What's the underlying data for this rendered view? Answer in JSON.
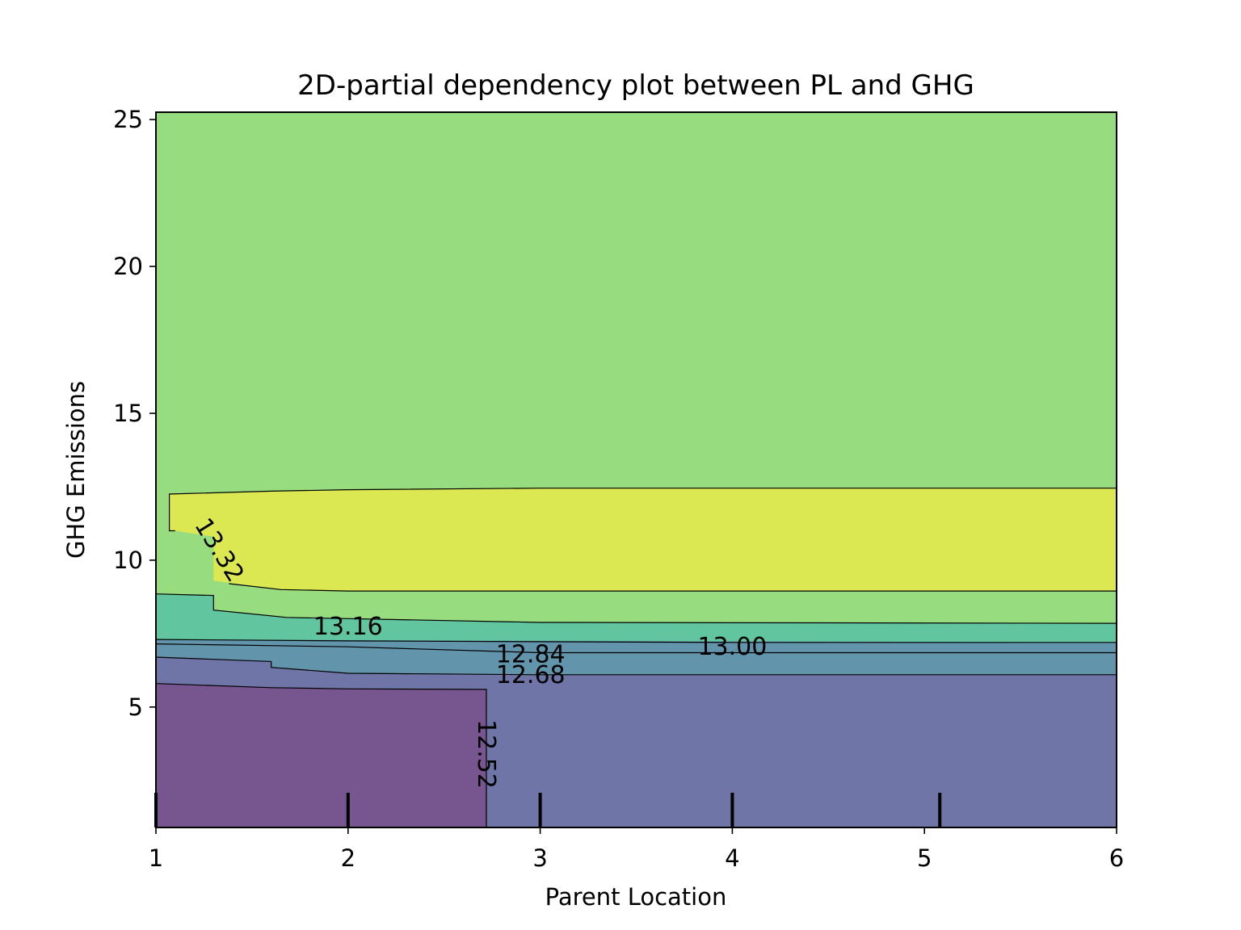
{
  "chart_data": {
    "type": "contour",
    "title": "2D-partial dependency plot between PL and GHG",
    "xlabel": "Parent Location",
    "ylabel": "GHG Emissions",
    "xlim": [
      1,
      6
    ],
    "ylim": [
      0.9,
      25.25
    ],
    "x_ticks": [
      1,
      2,
      3,
      4,
      5,
      6
    ],
    "y_ticks": [
      5,
      10,
      15,
      20,
      25
    ],
    "grid": false,
    "levels": [
      {
        "label": "12.52",
        "value": 12.52,
        "color": "#77558f"
      },
      {
        "label": "12.68",
        "value": 12.68,
        "color": "#6f76a7"
      },
      {
        "label": "12.84",
        "value": 12.84,
        "color": "#6294ab"
      },
      {
        "label": "13.00",
        "value": 13.0,
        "color": "#61c6a0"
      },
      {
        "label": "13.16",
        "value": 13.16,
        "color": "#97dc7f"
      },
      {
        "label": "13.32",
        "value": 13.32,
        "color": "#dbe851"
      }
    ],
    "regions": [
      {
        "color": "#97dc7f",
        "points": [
          [
            1,
            0.9
          ],
          [
            6,
            0.9
          ],
          [
            6,
            25.25
          ],
          [
            1,
            25.25
          ]
        ]
      },
      {
        "color": "#61c6a0",
        "points": [
          [
            1,
            0.9
          ],
          [
            6,
            0.9
          ],
          [
            6,
            7.85
          ],
          [
            3.0,
            7.88
          ],
          [
            1.68,
            8.05
          ],
          [
            1.3,
            8.3
          ],
          [
            1.3,
            8.8
          ],
          [
            1,
            8.85
          ]
        ]
      },
      {
        "color": "#6294ab",
        "points": [
          [
            1,
            0.9
          ],
          [
            6,
            0.9
          ],
          [
            6,
            7.2
          ],
          [
            1,
            7.3
          ]
        ]
      },
      {
        "color": "#6f76a7",
        "points": [
          [
            1,
            0.9
          ],
          [
            6,
            0.9
          ],
          [
            6,
            6.1
          ],
          [
            3.0,
            6.1
          ],
          [
            2.0,
            6.15
          ],
          [
            1.6,
            6.35
          ],
          [
            1.6,
            6.55
          ],
          [
            1,
            6.7
          ]
        ]
      },
      {
        "color": "#77558f",
        "points": [
          [
            1,
            0.9
          ],
          [
            2.72,
            0.9
          ],
          [
            2.72,
            5.6
          ],
          [
            2.0,
            5.62
          ],
          [
            1.6,
            5.66
          ],
          [
            1,
            5.8
          ]
        ]
      },
      {
        "color": "#dbe851",
        "points": [
          [
            1.07,
            12.25
          ],
          [
            1.6,
            12.35
          ],
          [
            2.0,
            12.4
          ],
          [
            3.0,
            12.45
          ],
          [
            6,
            12.45
          ],
          [
            6,
            8.95
          ],
          [
            3.0,
            8.95
          ],
          [
            2.0,
            8.95
          ],
          [
            1.65,
            9.0
          ],
          [
            1.3,
            9.3
          ],
          [
            1.3,
            10.8
          ],
          [
            1.1,
            11.0
          ],
          [
            1.07,
            11.0
          ]
        ]
      }
    ],
    "contour_lines": [
      {
        "level": "13.32",
        "points": [
          [
            1.1,
            11.0
          ],
          [
            1.07,
            11.0
          ],
          [
            1.07,
            12.25
          ],
          [
            1.6,
            12.35
          ],
          [
            2.0,
            12.4
          ],
          [
            3.0,
            12.45
          ],
          [
            6,
            12.45
          ]
        ]
      },
      {
        "level": "13.32",
        "points": [
          [
            1.38,
            9.2
          ],
          [
            1.65,
            9.0
          ],
          [
            2.0,
            8.95
          ],
          [
            3.0,
            8.95
          ],
          [
            6,
            8.95
          ]
        ]
      },
      {
        "level": "13.16",
        "points": [
          [
            1,
            8.85
          ],
          [
            1.3,
            8.8
          ],
          [
            1.3,
            8.3
          ],
          [
            1.68,
            8.05
          ],
          [
            3.0,
            7.88
          ],
          [
            6,
            7.85
          ]
        ]
      },
      {
        "level": "13.00",
        "points": [
          [
            1,
            7.3
          ],
          [
            2.0,
            7.25
          ],
          [
            4.0,
            7.2
          ],
          [
            6,
            7.2
          ]
        ]
      },
      {
        "level": "12.84",
        "points": [
          [
            1,
            7.15
          ],
          [
            2.0,
            7.05
          ],
          [
            3.0,
            6.85
          ],
          [
            6,
            6.85
          ]
        ]
      },
      {
        "level": "12.68",
        "points": [
          [
            1,
            6.7
          ],
          [
            1.6,
            6.55
          ],
          [
            1.6,
            6.35
          ],
          [
            2.0,
            6.15
          ],
          [
            3.0,
            6.1
          ],
          [
            6,
            6.1
          ]
        ]
      },
      {
        "level": "12.52",
        "points": [
          [
            1,
            5.8
          ],
          [
            1.6,
            5.66
          ],
          [
            2.0,
            5.62
          ],
          [
            2.72,
            5.6
          ],
          [
            2.72,
            0.9
          ]
        ]
      }
    ],
    "contour_labels": [
      {
        "text": "13.32",
        "x": 1.33,
        "y": 10.35,
        "angle": 58
      },
      {
        "text": "13.16",
        "x": 2.0,
        "y": 7.75,
        "angle": 0
      },
      {
        "text": "13.00",
        "x": 4.0,
        "y": 7.05,
        "angle": 0
      },
      {
        "text": "12.84",
        "x": 2.95,
        "y": 6.8,
        "angle": 0
      },
      {
        "text": "12.68",
        "x": 2.95,
        "y": 6.1,
        "angle": 0
      },
      {
        "text": "12.52",
        "x": 2.72,
        "y": 3.4,
        "angle": 90
      }
    ],
    "deciles_x": [
      1,
      2,
      3,
      4,
      5.08
    ]
  }
}
